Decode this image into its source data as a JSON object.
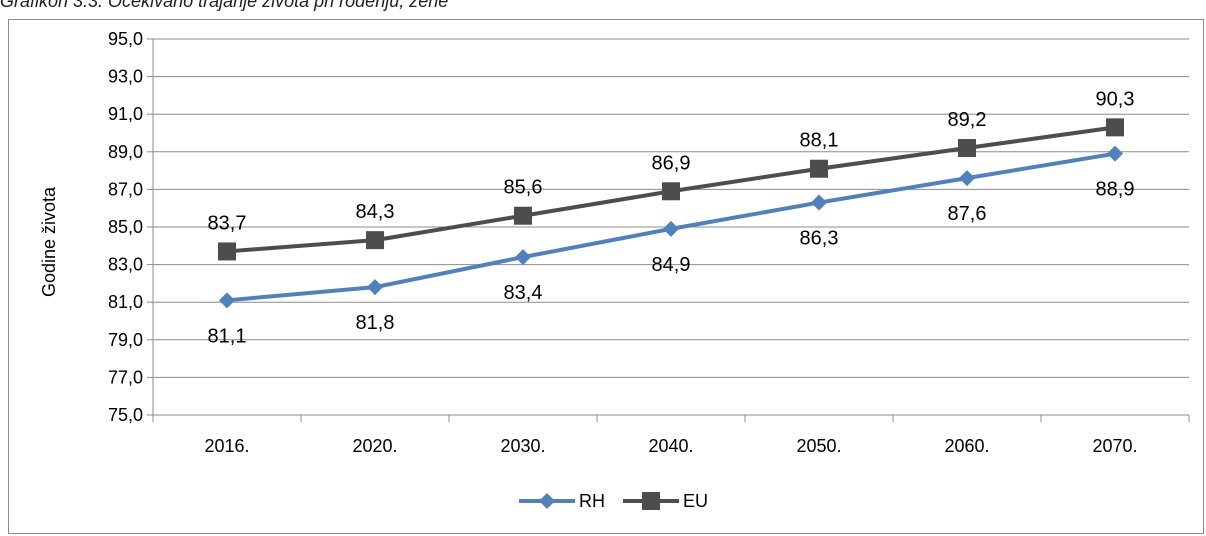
{
  "caption": "Grafikon 3.3. Očekivano trajanje života pri rođenju, žene",
  "chart_data": {
    "type": "line",
    "title": "",
    "xlabel": "",
    "ylabel": "Godine života",
    "categories": [
      "2016.",
      "2020.",
      "2030.",
      "2040.",
      "2050.",
      "2060.",
      "2070."
    ],
    "ylim": [
      75,
      95
    ],
    "ytick_step": 2,
    "yticks": [
      "75,0",
      "77,0",
      "79,0",
      "81,0",
      "83,0",
      "85,0",
      "87,0",
      "89,0",
      "91,0",
      "93,0",
      "95,0"
    ],
    "grid": true,
    "legend_position": "bottom",
    "series": [
      {
        "name": "RH",
        "color": "#4F81BD",
        "marker": "diamond",
        "label_position": "below",
        "values": [
          81.1,
          81.8,
          83.4,
          84.9,
          86.3,
          87.6,
          88.9
        ],
        "labels": [
          "81,1",
          "81,8",
          "83,4",
          "84,9",
          "86,3",
          "87,6",
          "88,9"
        ]
      },
      {
        "name": "EU",
        "color": "#4D4D4D",
        "marker": "square",
        "label_position": "above",
        "values": [
          83.7,
          84.3,
          85.6,
          86.9,
          88.1,
          89.2,
          90.3
        ],
        "labels": [
          "83,7",
          "84,3",
          "85,6",
          "86,9",
          "88,1",
          "89,2",
          "90,3"
        ]
      }
    ]
  }
}
